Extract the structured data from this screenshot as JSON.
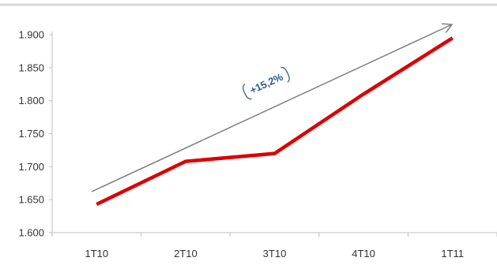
{
  "chart_data": {
    "type": "line",
    "title": "",
    "xlabel": "",
    "ylabel": "",
    "categories": [
      "1T10",
      "2T10",
      "3T10",
      "4T10",
      "1T11"
    ],
    "series": [
      {
        "values": [
          1.643,
          1.708,
          1.72,
          1.81,
          1.895
        ]
      }
    ],
    "ylim": [
      1.6,
      1.9
    ],
    "y_ticks": [
      1.6,
      1.65,
      1.7,
      1.75,
      1.8,
      1.85,
      1.9
    ],
    "y_tick_labels": [
      "1.600",
      "1.650",
      "1.700",
      "1.750",
      "1.800",
      "1.850",
      "1.900"
    ],
    "grid": false,
    "line_color": "#dd0000",
    "trend_arrow": {
      "label": "+15,2%",
      "color": "#7f7f7f",
      "label_color": "#2f5597"
    }
  }
}
